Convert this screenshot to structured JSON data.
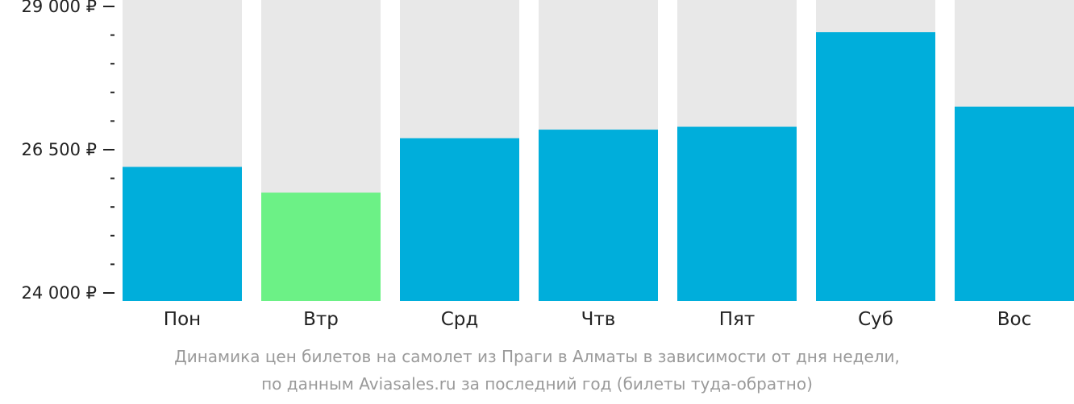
{
  "chart_data": {
    "type": "bar",
    "categories": [
      "Пон",
      "Втр",
      "Срд",
      "Чтв",
      "Пят",
      "Суб",
      "Вос"
    ],
    "values": [
      26200,
      25750,
      26700,
      26850,
      26900,
      28550,
      27250
    ],
    "ylim": [
      24000,
      29000
    ],
    "yticks": [
      {
        "value": 24000,
        "label": "24 000 ₽"
      },
      {
        "value": 26500,
        "label": "26 500 ₽"
      },
      {
        "value": 29000,
        "label": "29 000 ₽"
      }
    ],
    "minor_tick_step": 500,
    "colors": {
      "bar": "#00AEDB",
      "bar_lowest": "#6CF186",
      "bar_background": "#E8E8E8",
      "axis_text": "#222222",
      "caption_text": "#9A9A9A"
    },
    "grid": false,
    "legend": "none"
  },
  "caption": {
    "line1": "Динамика цен билетов на самолет из Праги в Алматы в зависимости от дня недели,",
    "line2": "по данным Aviasales.ru за последний год (билеты туда-обратно)"
  }
}
